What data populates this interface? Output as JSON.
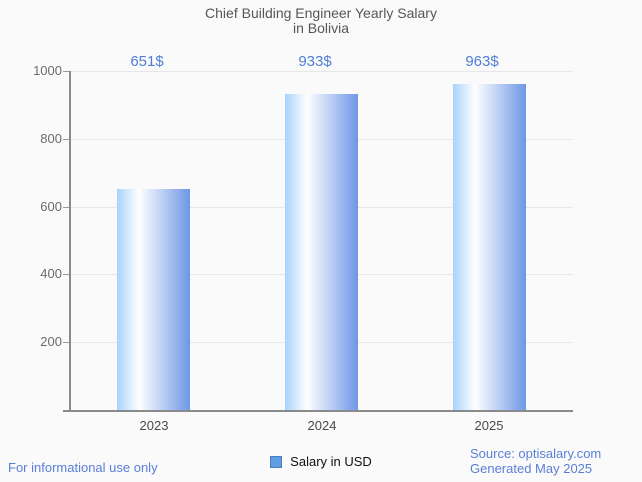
{
  "title": {
    "line1": "Chief Building Engineer Yearly Salary",
    "line2": "in Bolivia"
  },
  "chart_data": {
    "type": "bar",
    "title": "Chief Building Engineer Yearly Salary in Bolivia",
    "categories": [
      "2023",
      "2024",
      "2025"
    ],
    "values": [
      651,
      933,
      963
    ],
    "value_labels": [
      "651$",
      "933$",
      "963$"
    ],
    "series_name": "Salary in USD",
    "ylim": [
      0,
      1000
    ],
    "yticks": [
      200,
      400,
      600,
      800,
      1000
    ],
    "grid": true,
    "legend_position": "bottom"
  },
  "legend": {
    "label": "Salary in USD"
  },
  "footer": {
    "left": "For informational use only",
    "source": "Source: optisalary.com",
    "generated": "Generated May 2025"
  },
  "colors": {
    "value_label": "#4e7fd2",
    "footer_text": "#5a7fd8",
    "legend_swatch_fill": "#5f9de5",
    "legend_swatch_border": "#4a7cbe",
    "bar_gradient_left": "#a7d3fb",
    "bar_gradient_mid": "#ffffff",
    "bar_gradient_right": "#6e97e7"
  }
}
